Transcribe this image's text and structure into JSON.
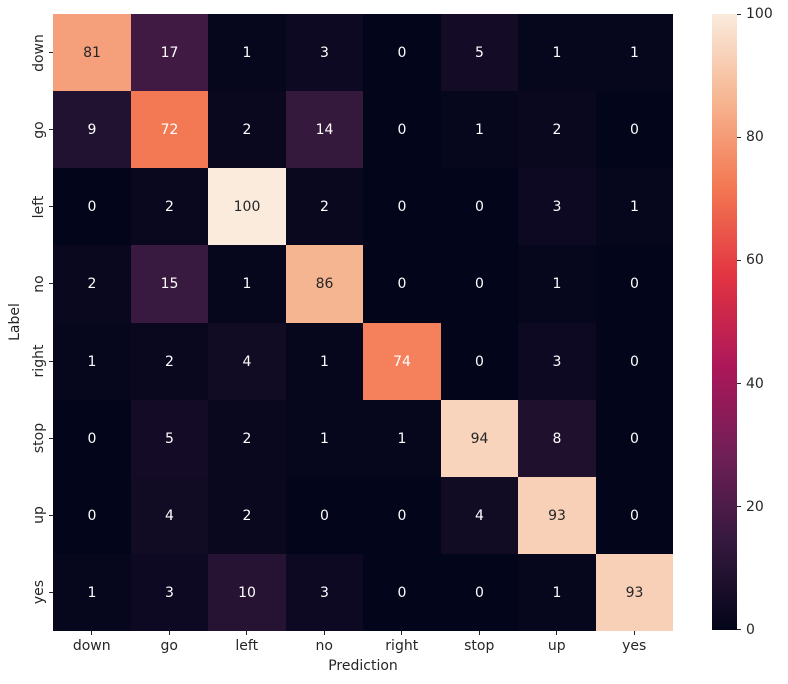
{
  "figure": {
    "background": "#FFFFFF",
    "text_color": "#262626"
  },
  "chart_data": {
    "type": "heatmap",
    "title": "",
    "xlabel": "Prediction",
    "ylabel": "Label",
    "x_categories": [
      "down",
      "go",
      "left",
      "no",
      "right",
      "stop",
      "up",
      "yes"
    ],
    "y_categories": [
      "down",
      "go",
      "left",
      "no",
      "right",
      "stop",
      "up",
      "yes"
    ],
    "matrix": [
      [
        81,
        17,
        1,
        3,
        0,
        5,
        1,
        1
      ],
      [
        9,
        72,
        2,
        14,
        0,
        1,
        2,
        0
      ],
      [
        0,
        2,
        100,
        2,
        0,
        0,
        3,
        1
      ],
      [
        2,
        15,
        1,
        86,
        0,
        0,
        1,
        0
      ],
      [
        1,
        2,
        4,
        1,
        74,
        0,
        3,
        0
      ],
      [
        0,
        5,
        2,
        1,
        1,
        94,
        8,
        0
      ],
      [
        0,
        4,
        2,
        0,
        0,
        4,
        93,
        0
      ],
      [
        1,
        3,
        10,
        3,
        0,
        0,
        1,
        93
      ]
    ],
    "vmin": 0,
    "vmax": 100,
    "grid": false,
    "annotated": true,
    "legend_position": "right-colorbar",
    "colorbar_ticks": [
      0,
      20,
      40,
      60,
      80,
      100
    ],
    "colormap_name": "rocket",
    "colormap_stops": [
      {
        "t": 0.0,
        "color": "#03051A"
      },
      {
        "t": 0.143,
        "color": "#35193E"
      },
      {
        "t": 0.286,
        "color": "#701F57"
      },
      {
        "t": 0.429,
        "color": "#AD1759"
      },
      {
        "t": 0.571,
        "color": "#E13342"
      },
      {
        "t": 0.714,
        "color": "#F37651"
      },
      {
        "t": 0.857,
        "color": "#F6B48F"
      },
      {
        "t": 1.0,
        "color": "#FAEBDD"
      }
    ],
    "annot_color_dark": "#262626",
    "annot_color_light": "#FFFFFF"
  }
}
